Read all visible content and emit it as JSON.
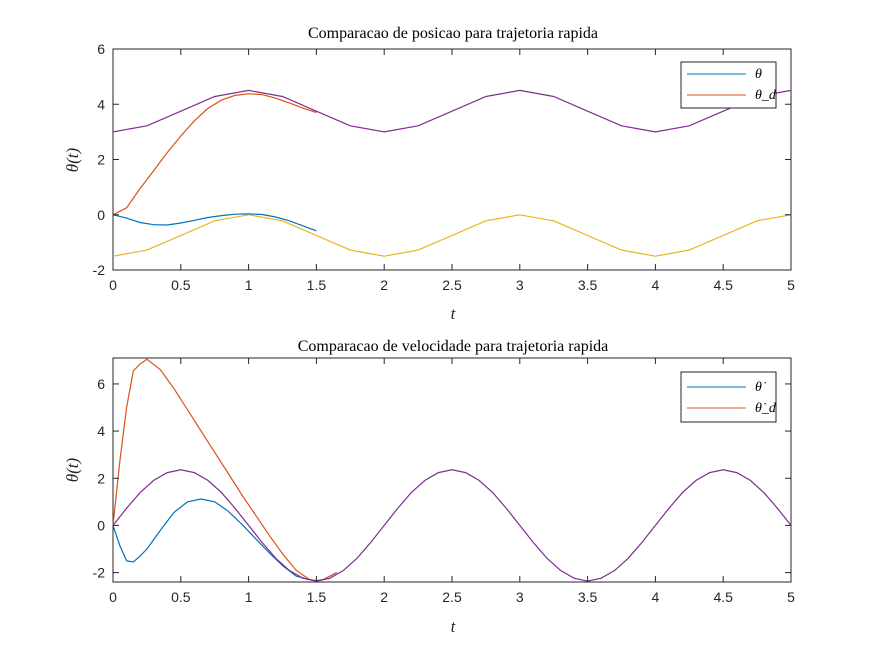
{
  "chart_data": [
    {
      "type": "line",
      "title": "Comparacao de posicao para trajetoria rapida",
      "xlabel": "t",
      "ylabel": "θ(t)",
      "xlim": [
        0,
        5
      ],
      "ylim": [
        -2,
        6
      ],
      "xticks": [
        "0",
        "0.5",
        "1",
        "1.5",
        "2",
        "2.5",
        "3",
        "3.5",
        "4",
        "4.5",
        "5"
      ],
      "yticks": [
        "-2",
        "0",
        "2",
        "4",
        "6"
      ],
      "legend": {
        "position": "top-right",
        "entries": [
          "θ",
          "θ_d"
        ]
      },
      "grid": false,
      "series": [
        {
          "name": "θ",
          "color": "#0072BD",
          "x": [
            0,
            0.1,
            0.2,
            0.3,
            0.4,
            0.5,
            0.6,
            0.7,
            0.8,
            0.9,
            1.0,
            1.1,
            1.2,
            1.3,
            1.4,
            1.5
          ],
          "y": [
            0,
            -0.12,
            -0.28,
            -0.36,
            -0.37,
            -0.3,
            -0.2,
            -0.1,
            -0.03,
            0.02,
            0.03,
            0.01,
            -0.08,
            -0.22,
            -0.4,
            -0.58
          ]
        },
        {
          "name": "θ_d",
          "color": "#D95319",
          "x": [
            0,
            0.1,
            0.2,
            0.3,
            0.4,
            0.5,
            0.6,
            0.7,
            0.8,
            0.9,
            1.0,
            1.1,
            1.2,
            1.3,
            1.4,
            1.5
          ],
          "y": [
            0,
            0.25,
            0.95,
            1.6,
            2.25,
            2.85,
            3.4,
            3.85,
            4.15,
            4.32,
            4.38,
            4.35,
            4.22,
            4.05,
            3.86,
            3.7
          ]
        },
        {
          "color": "#EDB120",
          "x": [
            0,
            0.25,
            0.5,
            0.75,
            1.0,
            1.25,
            1.5,
            1.75,
            2.0,
            2.25,
            2.5,
            2.75,
            3.0,
            3.25,
            3.5,
            3.75,
            4.0,
            4.25,
            4.5,
            4.75,
            5.0
          ],
          "y": [
            -1.5,
            -1.28,
            -0.75,
            -0.22,
            0,
            -0.22,
            -0.75,
            -1.28,
            -1.5,
            -1.28,
            -0.75,
            -0.22,
            0,
            -0.22,
            -0.75,
            -1.28,
            -1.5,
            -1.28,
            -0.75,
            -0.22,
            0
          ]
        },
        {
          "color": "#7E2F8E",
          "x": [
            0,
            0.25,
            0.5,
            0.75,
            1.0,
            1.25,
            1.5,
            1.75,
            2.0,
            2.25,
            2.5,
            2.75,
            3.0,
            3.25,
            3.5,
            3.75,
            4.0,
            4.25,
            4.5,
            4.75,
            5.0
          ],
          "y": [
            3.0,
            3.22,
            3.75,
            4.28,
            4.5,
            4.28,
            3.75,
            3.22,
            3.0,
            3.22,
            3.75,
            4.28,
            4.5,
            4.28,
            3.75,
            3.22,
            3.0,
            3.22,
            3.75,
            4.28,
            4.5
          ]
        }
      ]
    },
    {
      "type": "line",
      "title": "Comparacao de velocidade para trajetoria rapida",
      "xlabel": "t",
      "ylabel": "θ(t)",
      "xlim": [
        0,
        5
      ],
      "ylim": [
        -2.4,
        7.1
      ],
      "xticks": [
        "0",
        "0.5",
        "1",
        "1.5",
        "2",
        "2.5",
        "3",
        "3.5",
        "4",
        "4.5",
        "5"
      ],
      "yticks": [
        "-2",
        "0",
        "2",
        "4",
        "6"
      ],
      "legend": {
        "position": "top-right",
        "entries": [
          "θ̇",
          "θ̇_d"
        ]
      },
      "grid": false,
      "series": [
        {
          "name": "θ̇",
          "color": "#0072BD",
          "x": [
            0,
            0.05,
            0.1,
            0.15,
            0.2,
            0.25,
            0.35,
            0.45,
            0.55,
            0.65,
            0.75,
            0.85,
            0.95,
            1.05,
            1.15,
            1.25,
            1.35,
            1.45,
            1.5,
            1.55,
            1.65
          ],
          "y": [
            0,
            -0.85,
            -1.5,
            -1.55,
            -1.3,
            -1.0,
            -0.2,
            0.55,
            1.0,
            1.12,
            1.0,
            0.6,
            0.05,
            -0.55,
            -1.15,
            -1.7,
            -2.15,
            -2.3,
            -2.34,
            -2.3,
            -2.0
          ]
        },
        {
          "name": "θ̇_d",
          "color": "#D95319",
          "x": [
            0,
            0.05,
            0.1,
            0.15,
            0.2,
            0.25,
            0.35,
            0.45,
            0.55,
            0.65,
            0.75,
            0.85,
            0.95,
            1.05,
            1.15,
            1.25,
            1.35,
            1.45,
            1.5,
            1.55,
            1.65
          ],
          "y": [
            0,
            2.7,
            5.0,
            6.55,
            6.85,
            7.05,
            6.6,
            5.8,
            4.9,
            4.0,
            3.1,
            2.2,
            1.3,
            0.45,
            -0.4,
            -1.2,
            -1.9,
            -2.3,
            -2.36,
            -2.3,
            -2.0
          ]
        },
        {
          "color": "#7E2F8E",
          "x": [
            0,
            0.1,
            0.2,
            0.3,
            0.4,
            0.5,
            0.6,
            0.7,
            0.8,
            0.9,
            1.0,
            1.1,
            1.2,
            1.3,
            1.4,
            1.5,
            1.6,
            1.7,
            1.8,
            1.9,
            2.0,
            2.1,
            2.2,
            2.3,
            2.4,
            2.5,
            2.6,
            2.7,
            2.8,
            2.9,
            3.0,
            3.1,
            3.2,
            3.3,
            3.4,
            3.5,
            3.6,
            3.7,
            3.8,
            3.9,
            4.0,
            4.1,
            4.2,
            4.3,
            4.4,
            4.5,
            4.6,
            4.7,
            4.8,
            4.9,
            5.0
          ],
          "y": [
            0,
            0.73,
            1.39,
            1.91,
            2.24,
            2.36,
            2.24,
            1.91,
            1.39,
            0.73,
            0,
            -0.73,
            -1.39,
            -1.91,
            -2.24,
            -2.36,
            -2.24,
            -1.91,
            -1.39,
            -0.73,
            0,
            0.73,
            1.39,
            1.91,
            2.24,
            2.36,
            2.24,
            1.91,
            1.39,
            0.73,
            0,
            -0.73,
            -1.39,
            -1.91,
            -2.24,
            -2.36,
            -2.24,
            -1.91,
            -1.39,
            -0.73,
            0,
            0.73,
            1.39,
            1.91,
            2.24,
            2.36,
            2.24,
            1.91,
            1.39,
            0.73,
            0
          ]
        }
      ]
    }
  ]
}
